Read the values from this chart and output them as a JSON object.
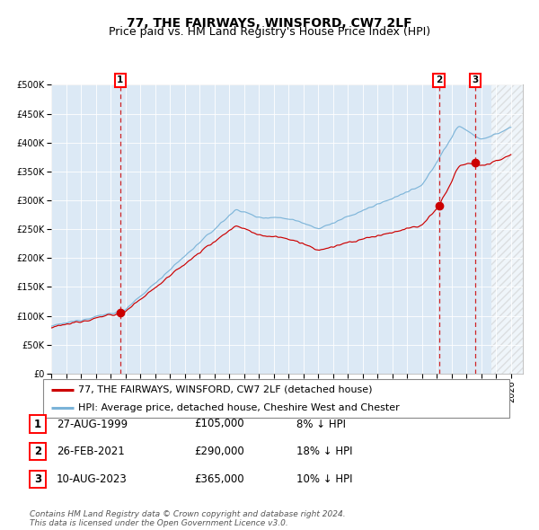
{
  "title": "77, THE FAIRWAYS, WINSFORD, CW7 2LF",
  "subtitle": "Price paid vs. HM Land Registry's House Price Index (HPI)",
  "ylim": [
    0,
    500000
  ],
  "yticks": [
    0,
    50000,
    100000,
    150000,
    200000,
    250000,
    300000,
    350000,
    400000,
    450000,
    500000
  ],
  "ytick_labels": [
    "£0",
    "£50K",
    "£100K",
    "£150K",
    "£200K",
    "£250K",
    "£300K",
    "£350K",
    "£400K",
    "£450K",
    "£500K"
  ],
  "x_start_year": 1995,
  "x_end_year": 2026,
  "background_color": "#dce9f5",
  "hpi_line_color": "#7ab3d8",
  "price_line_color": "#cc0000",
  "sale_dot_color": "#cc0000",
  "vline_color": "#cc0000",
  "sales": [
    {
      "date_year": 1999.65,
      "price": 105000,
      "label": "1"
    },
    {
      "date_year": 2021.15,
      "price": 290000,
      "label": "2"
    },
    {
      "date_year": 2023.6,
      "price": 365000,
      "label": "3"
    }
  ],
  "legend_entries": [
    {
      "color": "#cc0000",
      "label": "77, THE FAIRWAYS, WINSFORD, CW7 2LF (detached house)"
    },
    {
      "color": "#7ab3d8",
      "label": "HPI: Average price, detached house, Cheshire West and Chester"
    }
  ],
  "table_rows": [
    {
      "num": "1",
      "date": "27-AUG-1999",
      "price": "£105,000",
      "note": "8% ↓ HPI"
    },
    {
      "num": "2",
      "date": "26-FEB-2021",
      "price": "£290,000",
      "note": "18% ↓ HPI"
    },
    {
      "num": "3",
      "date": "10-AUG-2023",
      "price": "£365,000",
      "note": "10% ↓ HPI"
    }
  ],
  "footer": "Contains HM Land Registry data © Crown copyright and database right 2024.\nThis data is licensed under the Open Government Licence v3.0.",
  "title_fontsize": 10,
  "subtitle_fontsize": 9,
  "tick_fontsize": 7,
  "legend_fontsize": 8,
  "table_fontsize": 8.5
}
